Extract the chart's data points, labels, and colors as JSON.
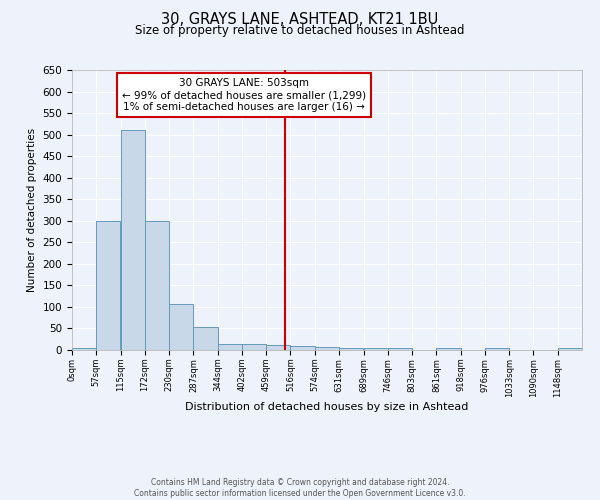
{
  "title": "30, GRAYS LANE, ASHTEAD, KT21 1BU",
  "subtitle": "Size of property relative to detached houses in Ashtead",
  "xlabel": "Distribution of detached houses by size in Ashtead",
  "ylabel": "Number of detached properties",
  "bin_edges": [
    0,
    57,
    115,
    172,
    230,
    287,
    344,
    402,
    459,
    516,
    574,
    631,
    689,
    746,
    803,
    861,
    918,
    976,
    1033,
    1090,
    1148,
    1205
  ],
  "bar_heights": [
    5,
    300,
    510,
    300,
    107,
    53,
    14,
    15,
    12,
    10,
    7,
    5,
    5,
    5,
    0,
    5,
    0,
    5,
    0,
    0,
    5
  ],
  "bar_color": "#c8d8e8",
  "bar_edgecolor": "#6699bb",
  "vline_x": 503,
  "vline_color": "#cc0000",
  "ylim": [
    0,
    650
  ],
  "yticks": [
    0,
    50,
    100,
    150,
    200,
    250,
    300,
    350,
    400,
    450,
    500,
    550,
    600,
    650
  ],
  "tick_labels": [
    "0sqm",
    "57sqm",
    "115sqm",
    "172sqm",
    "230sqm",
    "287sqm",
    "344sqm",
    "402sqm",
    "459sqm",
    "516sqm",
    "574sqm",
    "631sqm",
    "689sqm",
    "746sqm",
    "803sqm",
    "861sqm",
    "918sqm",
    "976sqm",
    "1033sqm",
    "1090sqm",
    "1148sqm"
  ],
  "annotation_title": "30 GRAYS LANE: 503sqm",
  "annotation_line1": "← 99% of detached houses are smaller (1,299)",
  "annotation_line2": "1% of semi-detached houses are larger (16) →",
  "annotation_box_color": "#ffffff",
  "annotation_edge_color": "#cc0000",
  "footer_line1": "Contains HM Land Registry data © Crown copyright and database right 2024.",
  "footer_line2": "Contains public sector information licensed under the Open Government Licence v3.0.",
  "background_color": "#eef2fb",
  "grid_color": "#ffffff"
}
